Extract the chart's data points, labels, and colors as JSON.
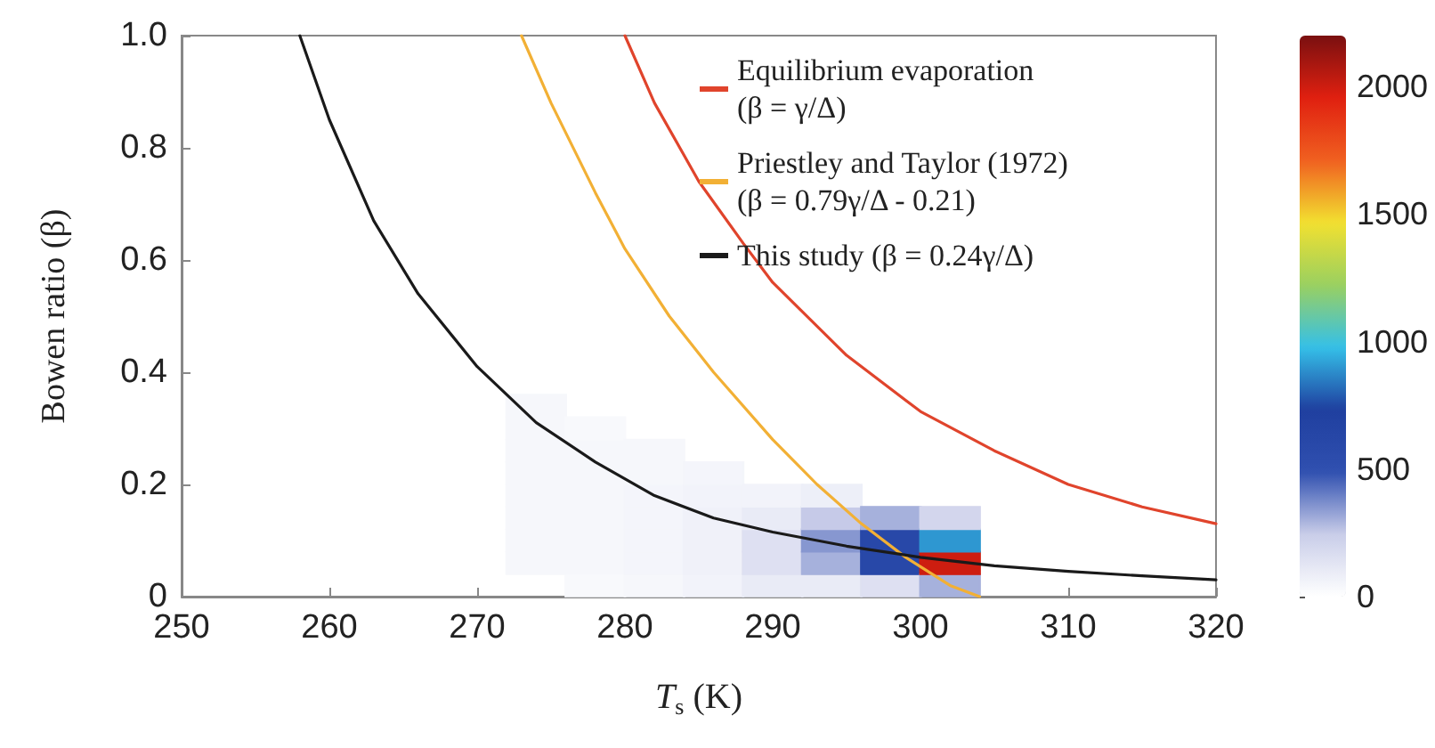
{
  "chart_data": {
    "type": "line",
    "xlabel": "T$_{s}$ (K)",
    "ylabel": "Bowen ratio (β)",
    "xlim": [
      250,
      320
    ],
    "xticks": [
      250,
      260,
      270,
      280,
      290,
      300,
      310,
      320
    ],
    "ylim": [
      0,
      1
    ],
    "yticks": [
      {
        "value": 0,
        "label": "0"
      },
      {
        "value": 0.2,
        "label": "0.2"
      },
      {
        "value": 0.4,
        "label": "0.4"
      },
      {
        "value": 0.6,
        "label": "0.6"
      },
      {
        "value": 0.8,
        "label": "0.8"
      },
      {
        "value": 1,
        "label": "1.0"
      }
    ],
    "clim": [
      0,
      2200
    ],
    "cticks": [
      0,
      500,
      1000,
      1500,
      2000
    ],
    "legend": "top right",
    "grid": false,
    "marker": "none",
    "line_style": "solid",
    "series": [
      {
        "type": "scatter",
        "marker": "square",
        "x": [
          274,
          274,
          274,
          274,
          274,
          274,
          274,
          274,
          278,
          278,
          278,
          278,
          278,
          278,
          278,
          278,
          282,
          282,
          282,
          282,
          282,
          282,
          282,
          286,
          286,
          286,
          286,
          286,
          286,
          290,
          290,
          290,
          290,
          290,
          294,
          294,
          294,
          294,
          294,
          298,
          298,
          298,
          298,
          302,
          302,
          302,
          302
        ],
        "values": [
          0.06,
          0.1,
          0.14,
          0.18,
          0.22,
          0.26,
          0.3,
          0.34,
          0.02,
          0.06,
          0.1,
          0.14,
          0.18,
          0.22,
          0.26,
          0.3,
          0.02,
          0.06,
          0.1,
          0.14,
          0.18,
          0.22,
          0.26,
          0.02,
          0.06,
          0.1,
          0.14,
          0.18,
          0.22,
          0.02,
          0.06,
          0.1,
          0.14,
          0.18,
          0.02,
          0.06,
          0.1,
          0.14,
          0.18,
          0.02,
          0.06,
          0.1,
          0.14,
          0.02,
          0.06,
          0.1,
          0.14
        ],
        "cvalues": [
          40,
          40,
          40,
          40,
          40,
          40,
          40,
          40,
          30,
          40,
          40,
          40,
          40,
          40,
          40,
          30,
          40,
          50,
          50,
          50,
          50,
          40,
          40,
          60,
          70,
          70,
          70,
          60,
          50,
          100,
          150,
          150,
          100,
          60,
          100,
          300,
          350,
          250,
          80,
          150,
          600,
          600,
          300,
          300,
          2000,
          900,
          200
        ],
        "colors": [
          "#f6f7fb",
          "#f6f7fb",
          "#f6f7fb",
          "#f6f7fb",
          "#f6f7fb",
          "#f6f7fb",
          "#f6f7fb",
          "#f6f7fb",
          "#f8f9fc",
          "#f6f7fb",
          "#f6f7fb",
          "#f6f7fb",
          "#f6f7fb",
          "#f6f7fb",
          "#f6f7fb",
          "#f8f9fc",
          "#f6f7fb",
          "#f4f5fa",
          "#f4f5fa",
          "#f4f5fa",
          "#f4f5fa",
          "#f6f7fb",
          "#f6f7fb",
          "#f2f3fa",
          "#f0f1f9",
          "#f0f1f9",
          "#f0f1f9",
          "#f2f3fa",
          "#f4f5fa",
          "#e9ebf6",
          "#dee0f1",
          "#dee0f1",
          "#e9ebf6",
          "#f2f3fa",
          "#e9ebf6",
          "#a6b1dc",
          "#8797d0",
          "#c5cae8",
          "#edeff8",
          "#dee0f1",
          "#2848a8",
          "#2848a8",
          "#a6b1dc",
          "#a6b1dc",
          "#ce1d10",
          "#2e97d1",
          "#d3d6ed"
        ]
      },
      {
        "name": "Equilibrium evaporation\n(β = γ/Δ)",
        "color": "#e0442c",
        "x": [
          280,
          282,
          285,
          288,
          290,
          295,
          300,
          305,
          310,
          315,
          320
        ],
        "values": [
          1.0,
          0.88,
          0.74,
          0.63,
          0.56,
          0.43,
          0.33,
          0.26,
          0.2,
          0.16,
          0.13
        ]
      },
      {
        "name": "Priestley and Taylor (1972)\n(β = 0.79γ/Δ - 0.21)",
        "color": "#f2b035",
        "x": [
          273,
          275,
          278,
          280,
          283,
          286,
          290,
          293,
          296,
          299,
          302,
          304
        ],
        "values": [
          1.0,
          0.88,
          0.72,
          0.62,
          0.5,
          0.4,
          0.28,
          0.2,
          0.13,
          0.07,
          0.02,
          0
        ]
      },
      {
        "name": "This study (β = 0.24γ/Δ)",
        "color": "#1a1a1a",
        "x": [
          258,
          260,
          263,
          266,
          270,
          274,
          278,
          282,
          286,
          290,
          295,
          300,
          305,
          310,
          315,
          320
        ],
        "values": [
          1.0,
          0.85,
          0.67,
          0.54,
          0.41,
          0.31,
          0.24,
          0.18,
          0.14,
          0.115,
          0.09,
          0.07,
          0.055,
          0.045,
          0.037,
          0.03
        ]
      }
    ]
  }
}
